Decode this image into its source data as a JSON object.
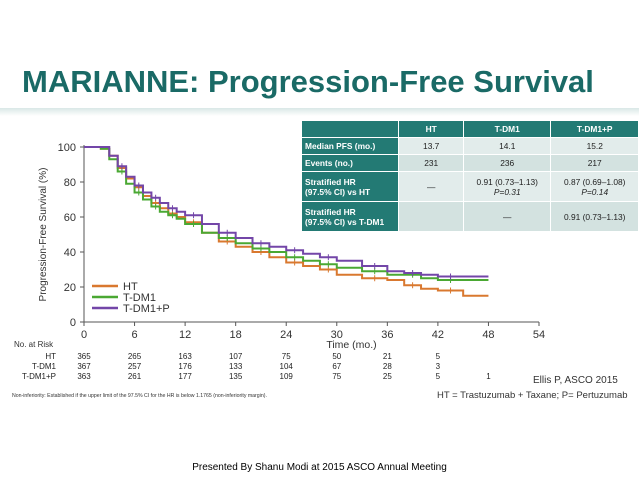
{
  "title": "MARIANNE: Progression-Free Survival",
  "table": {
    "headers": [
      "",
      "HT",
      "T-DM1",
      "T-DM1+P"
    ],
    "rows": [
      {
        "label": "Median PFS (mo.)",
        "cells": [
          "13.7",
          "14.1",
          "15.2"
        ]
      },
      {
        "label": "Events (no.)",
        "cells": [
          "231",
          "236",
          "217"
        ]
      },
      {
        "label": "Stratified HR",
        "label2": "(97.5% CI) vs HT",
        "cells": [
          "—",
          "0.91 (0.73–1.13)",
          "0.87 (0.69–1.08)"
        ],
        "cells2": [
          "",
          "P=0.31",
          "P=0.14"
        ]
      },
      {
        "label": "Stratified HR",
        "label2": "(97.5% CI) vs T-DM1",
        "cells": [
          "",
          "—",
          "0.91 (0.73–1.13)"
        ],
        "cells2": [
          "",
          "",
          ""
        ]
      }
    ]
  },
  "chart_data": {
    "type": "line",
    "ylabel": "Progression-Free Survival (%)",
    "xlabel": "Time (mo.)",
    "xlim": [
      0,
      54
    ],
    "ylim": [
      0,
      100
    ],
    "x_ticks": [
      0,
      6,
      12,
      18,
      24,
      30,
      36,
      42,
      48,
      54
    ],
    "y_ticks": [
      0,
      20,
      40,
      60,
      80,
      100
    ],
    "legend": "bottom-left",
    "series": [
      {
        "name": "HT",
        "color": "#d9782f",
        "x": [
          0,
          2,
          3,
          4,
          5,
          6,
          7,
          8,
          9,
          10,
          11,
          12,
          14,
          16,
          18,
          20,
          22,
          24,
          26,
          28,
          30,
          33,
          36,
          38,
          40,
          42,
          45,
          48
        ],
        "y": [
          100,
          99,
          95,
          88,
          82,
          77,
          72,
          68,
          65,
          62,
          60,
          57,
          51,
          46,
          43,
          40,
          37,
          34,
          32,
          30,
          27,
          25,
          24,
          21,
          19,
          18,
          15,
          15
        ]
      },
      {
        "name": "T-DM1",
        "color": "#4aa833",
        "x": [
          0,
          2,
          3,
          4,
          5,
          6,
          7,
          8,
          9,
          10,
          11,
          12,
          14,
          16,
          18,
          20,
          22,
          24,
          26,
          28,
          30,
          33,
          36,
          38,
          40,
          42,
          45,
          48
        ],
        "y": [
          100,
          99,
          93,
          86,
          79,
          74,
          70,
          66,
          63,
          61,
          59,
          56,
          51,
          48,
          45,
          42,
          40,
          37,
          35,
          33,
          31,
          29,
          27,
          27,
          25,
          24,
          24,
          24
        ]
      },
      {
        "name": "T-DM1+P",
        "color": "#7346a8",
        "x": [
          0,
          2,
          3,
          4,
          5,
          6,
          7,
          8,
          9,
          10,
          11,
          12,
          14,
          16,
          18,
          20,
          22,
          24,
          26,
          28,
          30,
          33,
          36,
          38,
          40,
          42,
          45,
          48
        ],
        "y": [
          100,
          100,
          95,
          89,
          83,
          78,
          74,
          71,
          68,
          65,
          63,
          61,
          56,
          51,
          48,
          45,
          43,
          41,
          39,
          37,
          35,
          32,
          29,
          28,
          27,
          26,
          26,
          26
        ]
      }
    ],
    "at_risk": {
      "title": "No. at Risk",
      "times": [
        0,
        6,
        12,
        18,
        24,
        30,
        36,
        42,
        48
      ],
      "rows": [
        {
          "label": "HT",
          "values": [
            "365",
            "265",
            "163",
            "107",
            "75",
            "50",
            "21",
            "5",
            ""
          ]
        },
        {
          "label": "T-DM1",
          "values": [
            "367",
            "257",
            "176",
            "133",
            "104",
            "67",
            "28",
            "3",
            ""
          ]
        },
        {
          "label": "T-DM1+P",
          "values": [
            "363",
            "261",
            "177",
            "135",
            "109",
            "75",
            "25",
            "5",
            "1"
          ]
        }
      ]
    }
  },
  "footnote": "Non-inferiority: Established if the upper limit of the 97.5% CI for the HR is below 1.1765 (non-inferiority margin).",
  "citation": "Ellis P, ASCO 2015",
  "abbreviations": "HT = Trastuzumab + Taxane;  P= Pertuzumab",
  "footer": "Presented By Shanu Modi at 2015 ASCO Annual Meeting"
}
